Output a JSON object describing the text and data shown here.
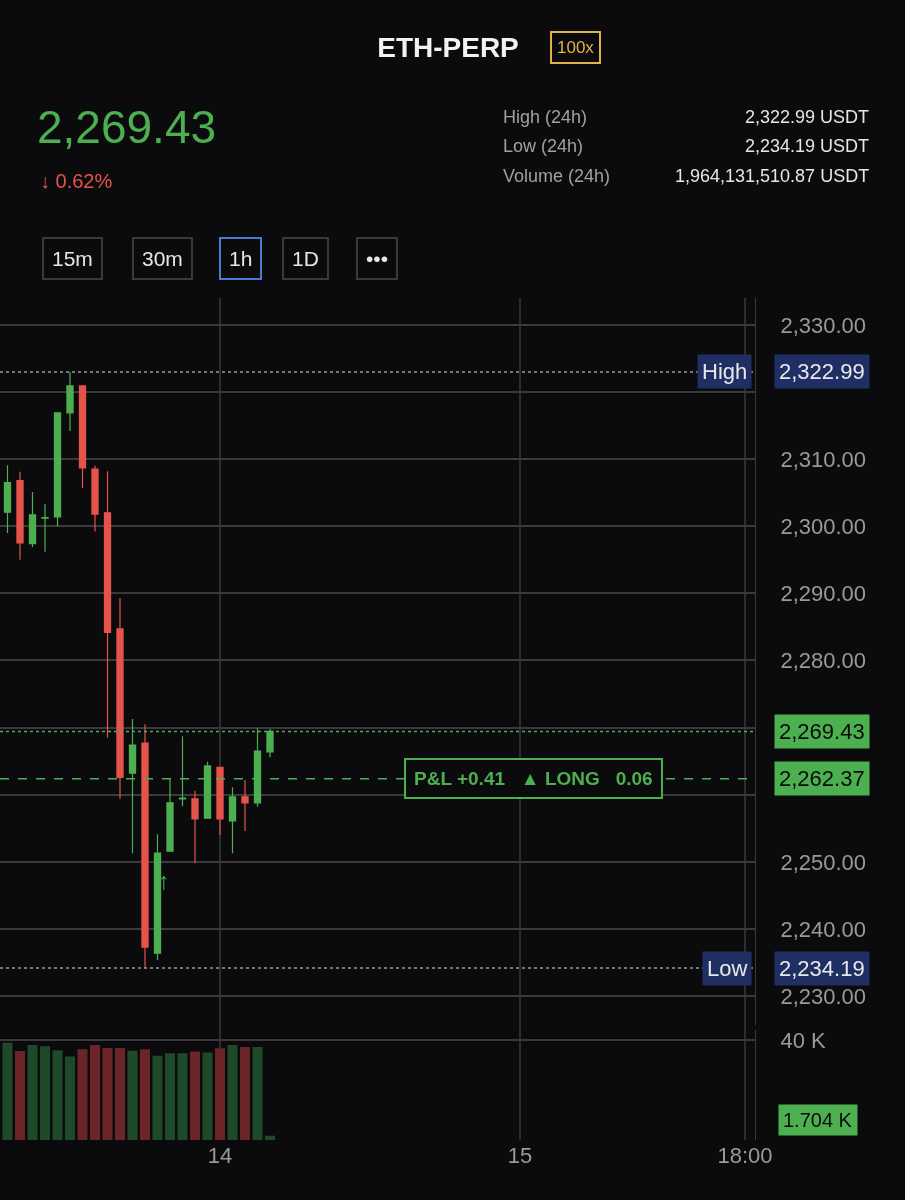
{
  "chart_data": [
    {
      "type": "candlestick",
      "title": "ETH-PERP",
      "annotations": [
        "100x",
        "2,269.43",
        "↓ 0.62%",
        "High (24h)",
        "2,322.99 USDT",
        "Low (24h)",
        "2,234.19 USDT",
        "Volume (24h)",
        "1,964,131,510.87 USDT",
        "15m",
        "30m",
        "1h",
        "1D",
        "•••",
        "↑",
        {
          "text": "High",
          "y": 2322.99
        },
        {
          "text": "Low",
          "y": 2234.19
        },
        {
          "text": "P&L +0.41   ▲ LONG   0.06",
          "y": 2262.37
        }
      ],
      "categories": [
        null,
        null,
        null,
        null,
        null,
        null,
        null,
        null,
        null,
        null,
        null,
        null,
        null,
        null,
        null,
        null,
        null,
        "14",
        null,
        null,
        null,
        null,
        null,
        null,
        null,
        null,
        null,
        null,
        null,
        null,
        null,
        null,
        null,
        null,
        null,
        null,
        null,
        null,
        null,
        null,
        null,
        "15",
        null,
        null,
        null,
        null,
        null,
        null,
        null,
        null,
        null,
        null,
        null,
        null,
        null,
        null,
        null,
        null,
        null,
        "18:00"
      ],
      "ohlc": [
        [
          2302.1,
          2309.1,
          2299.0,
          2306.5
        ],
        [
          2306.8,
          2308.1,
          2295.0,
          2297.5
        ],
        [
          2297.4,
          2305.1,
          2296.9,
          2301.7
        ],
        [
          2301.2,
          2303.3,
          2296.2,
          2301.3
        ],
        [
          2301.4,
          2316.9,
          2300.0,
          2316.9
        ],
        [
          2316.9,
          2322.99,
          2314.2,
          2320.9
        ],
        [
          2320.9,
          2320.9,
          2305.7,
          2308.7
        ],
        [
          2308.5,
          2309.0,
          2299.2,
          2301.8
        ],
        [
          2302.0,
          2308.2,
          2268.5,
          2284.2
        ],
        [
          2284.7,
          2289.3,
          2259.4,
          2262.6
        ],
        [
          2263.2,
          2271.3,
          2251.3,
          2267.4
        ],
        [
          2267.7,
          2270.5,
          2234.19,
          2237.3
        ],
        [
          2236.4,
          2254.1,
          2235.4,
          2251.3
        ],
        [
          2251.6,
          2262.5,
          2251.6,
          2258.8
        ],
        [
          2259.4,
          2268.7,
          2258.3,
          2259.5
        ],
        [
          2259.4,
          2260.6,
          2249.8,
          2256.4
        ],
        [
          2256.5,
          2264.9,
          2256.5,
          2264.3
        ],
        [
          2264.1,
          2264.1,
          2254.0,
          2256.4
        ],
        [
          2256.1,
          2261.1,
          2251.3,
          2259.7
        ],
        [
          2259.7,
          2262.2,
          2254.6,
          2258.8
        ],
        [
          2258.8,
          2269.9,
          2258.2,
          2266.5
        ],
        [
          2266.4,
          2269.8,
          2265.6,
          2269.43
        ],
        null,
        null,
        null,
        null,
        null,
        null,
        null,
        null,
        null,
        null,
        null,
        null,
        null,
        null,
        null,
        null,
        null,
        null,
        null,
        null,
        null,
        null,
        null,
        null,
        null,
        null,
        null,
        null,
        null,
        null,
        null,
        null,
        null,
        null,
        null,
        null,
        null,
        null
      ],
      "colors": [
        "#4caf50",
        "#e5534b",
        "#4caf50",
        "#4caf50",
        "#4caf50",
        "#4caf50",
        "#e5534b",
        "#e5534b",
        "#e5534b",
        "#e5534b",
        "#4caf50",
        "#e5534b",
        "#4caf50",
        "#4caf50",
        "#4caf50",
        "#e5534b",
        "#4caf50",
        "#e5534b",
        "#4caf50",
        "#e5534b",
        "#4caf50",
        "#4caf50",
        null,
        null,
        null,
        null,
        null,
        null,
        null,
        null,
        null,
        null,
        null,
        null,
        null,
        null,
        null,
        null,
        null,
        null,
        null,
        null,
        null,
        null,
        null,
        null,
        null,
        null,
        null,
        null,
        null,
        null,
        null,
        null,
        null,
        null,
        null,
        null,
        null,
        null
      ],
      "ylim": [
        2225.7,
        2334.0
      ],
      "yticks": [
        {
          "value": 2230,
          "label": "2,230.00"
        },
        {
          "value": 2240,
          "label": "2,240.00"
        },
        {
          "value": 2250,
          "label": "2,250.00"
        },
        {
          "value": 2260,
          "label": null
        },
        {
          "value": 2270,
          "label": null
        },
        {
          "value": 2280,
          "label": "2,280.00"
        },
        {
          "value": 2290,
          "label": "2,290.00"
        },
        {
          "value": 2300,
          "label": "2,300.00"
        },
        {
          "value": 2310,
          "label": "2,310.00"
        },
        {
          "value": 2320,
          "label": null
        },
        {
          "value": 2330,
          "label": "2,330.00"
        }
      ],
      "ref_lines": [
        {
          "axis": "y",
          "value": 2322.99,
          "label": "2,322.99",
          "color": "#9a9a9a",
          "line_style": "dotted"
        },
        {
          "axis": "y",
          "value": 2234.19,
          "label": "2,234.19",
          "color": "#9a9a9a",
          "line_style": "dotted"
        },
        {
          "axis": "y",
          "value": 2269.43,
          "label": "2,269.43",
          "color": "#4caf50",
          "line_style": "dotted"
        },
        {
          "axis": "y",
          "value": 2262.37,
          "label": "2,262.37",
          "color": "#4caf50",
          "line_style": "dashed"
        }
      ],
      "grid": true
    },
    {
      "type": "bar",
      "categories": [
        null,
        null,
        null,
        null,
        null,
        null,
        null,
        null,
        null,
        null,
        null,
        null,
        null,
        null,
        null,
        null,
        null,
        null,
        null,
        null,
        null,
        null,
        null,
        null,
        null,
        null,
        null,
        null,
        null,
        null,
        null,
        null,
        null,
        null,
        null,
        null,
        null,
        null,
        null,
        null,
        null,
        null,
        null,
        null,
        null,
        null,
        null,
        null,
        null,
        null,
        null,
        null,
        null,
        null,
        null,
        null,
        null,
        null,
        null,
        null
      ],
      "values": [
        38900,
        35600,
        38000,
        37500,
        35900,
        33400,
        36300,
        38000,
        36800,
        36800,
        35700,
        36300,
        33700,
        34700,
        34700,
        35400,
        35000,
        36700,
        38000,
        37200,
        37200,
        1704,
        null,
        null,
        null,
        null,
        null,
        null,
        null,
        null,
        null,
        null,
        null,
        null,
        null,
        null,
        null,
        null,
        null,
        null,
        null,
        null,
        null,
        null,
        null,
        null,
        null,
        null,
        null,
        null,
        null,
        null,
        null,
        null,
        null,
        null,
        null,
        null,
        null,
        null
      ],
      "colors": [
        "#1f4a2a",
        "#6b2528",
        "#1f4a2a",
        "#1f4a2a",
        "#1f4a2a",
        "#1f4a2a",
        "#6b2528",
        "#6b2528",
        "#6b2528",
        "#6b2528",
        "#1f4a2a",
        "#6b2528",
        "#1f4a2a",
        "#1f4a2a",
        "#1f4a2a",
        "#6b2528",
        "#1f4a2a",
        "#6b2528",
        "#1f4a2a",
        "#6b2528",
        "#1f4a2a",
        "#1f4a2a",
        null,
        null,
        null,
        null,
        null,
        null,
        null,
        null,
        null,
        null,
        null,
        null,
        null,
        null,
        null,
        null,
        null,
        null,
        null,
        null,
        null,
        null,
        null,
        null,
        null,
        null,
        null,
        null,
        null,
        null,
        null,
        null,
        null,
        null,
        null,
        null,
        null,
        null
      ],
      "annotations": [
        "1.704 K"
      ],
      "ylim": [
        0,
        44000
      ],
      "yticks": [
        {
          "value": 40000,
          "label": "40 K"
        }
      ],
      "tick_labels": "y",
      "grid": "y"
    }
  ]
}
